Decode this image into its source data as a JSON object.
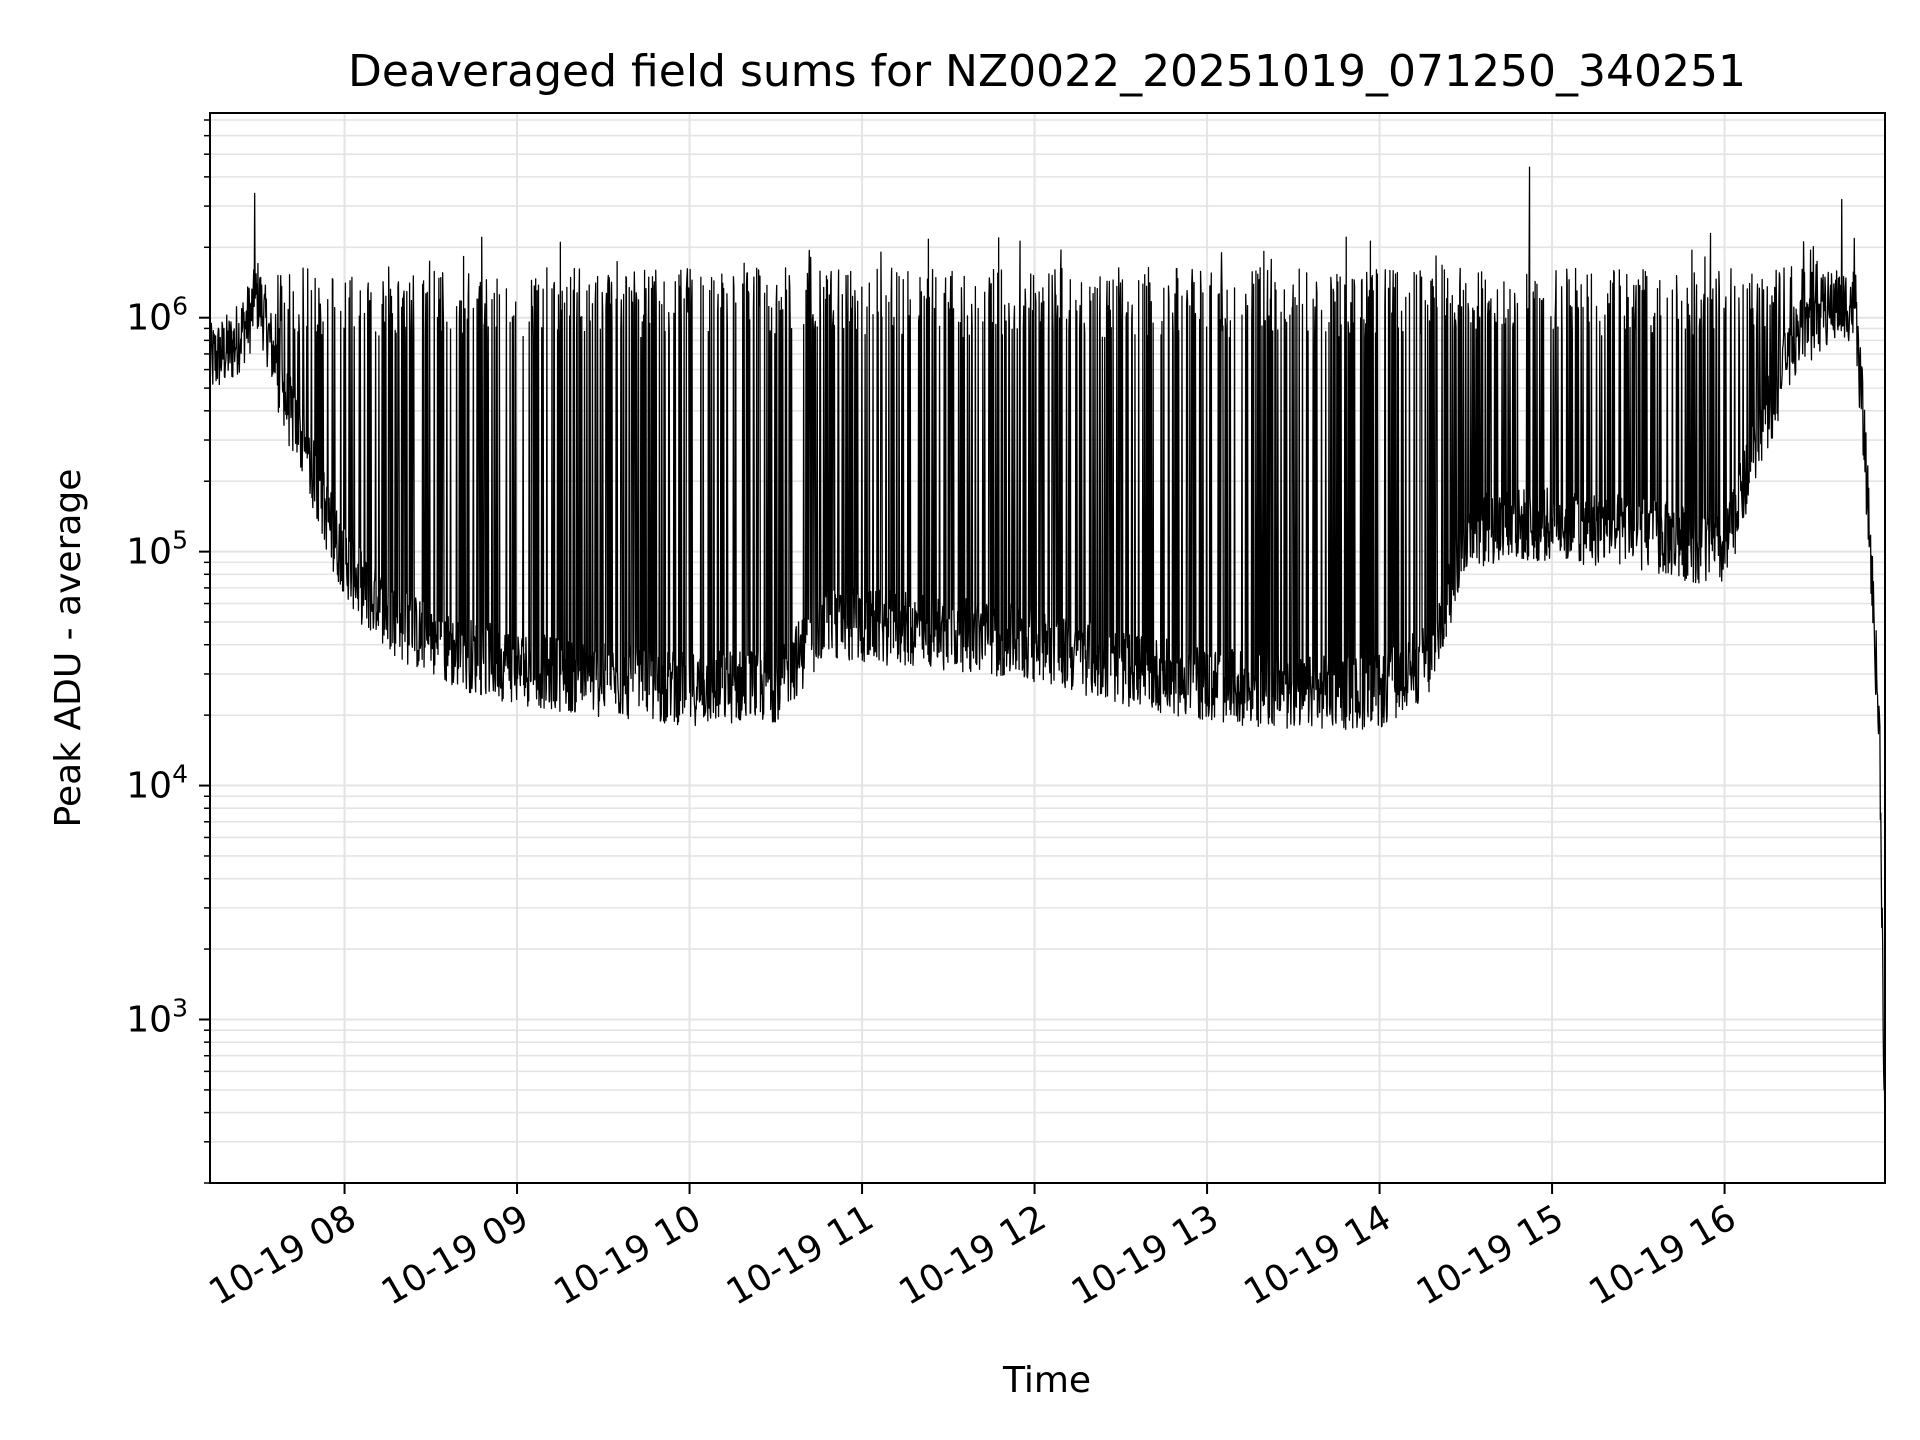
{
  "chart_data": {
    "type": "line",
    "title": "Deaveraged field sums for NZ0022_20251019_071250_340251",
    "xlabel": "Time",
    "ylabel": "Peak ADU - average",
    "yscale": "log",
    "ylim": [
      200,
      7500000
    ],
    "xlim_hours": [
      7.22,
      16.93
    ],
    "grid": true,
    "line_color": "#000000",
    "x_ticks": [
      {
        "hour": 8,
        "label": "10-19 08"
      },
      {
        "hour": 9,
        "label": "10-19 09"
      },
      {
        "hour": 10,
        "label": "10-19 10"
      },
      {
        "hour": 11,
        "label": "10-19 11"
      },
      {
        "hour": 12,
        "label": "10-19 12"
      },
      {
        "hour": 13,
        "label": "10-19 13"
      },
      {
        "hour": 14,
        "label": "10-19 14"
      },
      {
        "hour": 15,
        "label": "10-19 15"
      },
      {
        "hour": 16,
        "label": "10-19 16"
      }
    ],
    "y_ticks": [
      {
        "value": 1000,
        "base": "10",
        "exp": "3"
      },
      {
        "value": 10000,
        "base": "10",
        "exp": "4"
      },
      {
        "value": 100000,
        "base": "10",
        "exp": "5"
      },
      {
        "value": 1000000,
        "base": "10",
        "exp": "6"
      }
    ],
    "series": [
      {
        "name": "Peak ADU - average",
        "baseline_envelope": {
          "hours": [
            7.22,
            7.35,
            7.45,
            7.5,
            7.55,
            7.65,
            7.75,
            7.85,
            7.95,
            8.1,
            8.3,
            8.6,
            9.0,
            9.5,
            10.0,
            10.5,
            10.8,
            11.0,
            11.5,
            12.0,
            12.5,
            13.0,
            13.5,
            14.0,
            14.3,
            14.5,
            14.8,
            15.0,
            15.5,
            16.0,
            16.2,
            16.4,
            16.6,
            16.75,
            16.8,
            16.85,
            16.9,
            16.93
          ],
          "values": [
            650000,
            750000,
            1000000,
            1250000,
            900000,
            450000,
            300000,
            180000,
            110000,
            70000,
            50000,
            38000,
            32000,
            28000,
            26000,
            27000,
            50000,
            48000,
            45000,
            40000,
            32000,
            27000,
            25000,
            25000,
            35000,
            120000,
            130000,
            130000,
            120000,
            100000,
            300000,
            800000,
            1100000,
            1150000,
            400000,
            90000,
            15000,
            300
          ]
        },
        "spike_peak_typical": 1200000,
        "notable_peaks": [
          {
            "hour": 7.48,
            "value": 3400000
          },
          {
            "hour": 14.87,
            "value": 4400000
          },
          {
            "hour": 16.68,
            "value": 3200000
          }
        ]
      }
    ]
  }
}
